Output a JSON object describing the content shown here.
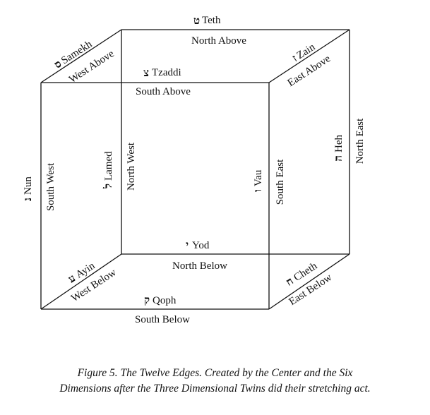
{
  "edges": {
    "teth": {
      "letter": "ט",
      "name": "Teth",
      "direction": "North Above"
    },
    "samekh": {
      "letter": "ס",
      "name": "Samekh",
      "direction": "West Above"
    },
    "zain": {
      "letter": "ז",
      "name": "Zain",
      "direction": "East Above"
    },
    "tzaddi": {
      "letter": "צ",
      "name": "Tzaddi",
      "direction": "South Above"
    },
    "nun": {
      "letter": "נ",
      "name": "Nun",
      "direction": "South West"
    },
    "lamed": {
      "letter": "ל",
      "name": "Lamed",
      "direction": "North West"
    },
    "vau": {
      "letter": "ו",
      "name": "Vau",
      "direction": "South East"
    },
    "heh": {
      "letter": "ה",
      "name": "Heh",
      "direction": "North East"
    },
    "yod": {
      "letter": "י",
      "name": "Yod",
      "direction": "North Below"
    },
    "ayin": {
      "letter": "ע",
      "name": "Ayin",
      "direction": "West Below"
    },
    "cheth": {
      "letter": "ח",
      "name": "Cheth",
      "direction": "East Below"
    },
    "qoph": {
      "letter": "ק",
      "name": "Qoph",
      "direction": "South Below"
    }
  },
  "caption": {
    "line1": "Figure 5. The Twelve Edges. Created by the Center and the Six",
    "line2": "Dimensions after the Three Dimensional Twins did their stretching act."
  }
}
